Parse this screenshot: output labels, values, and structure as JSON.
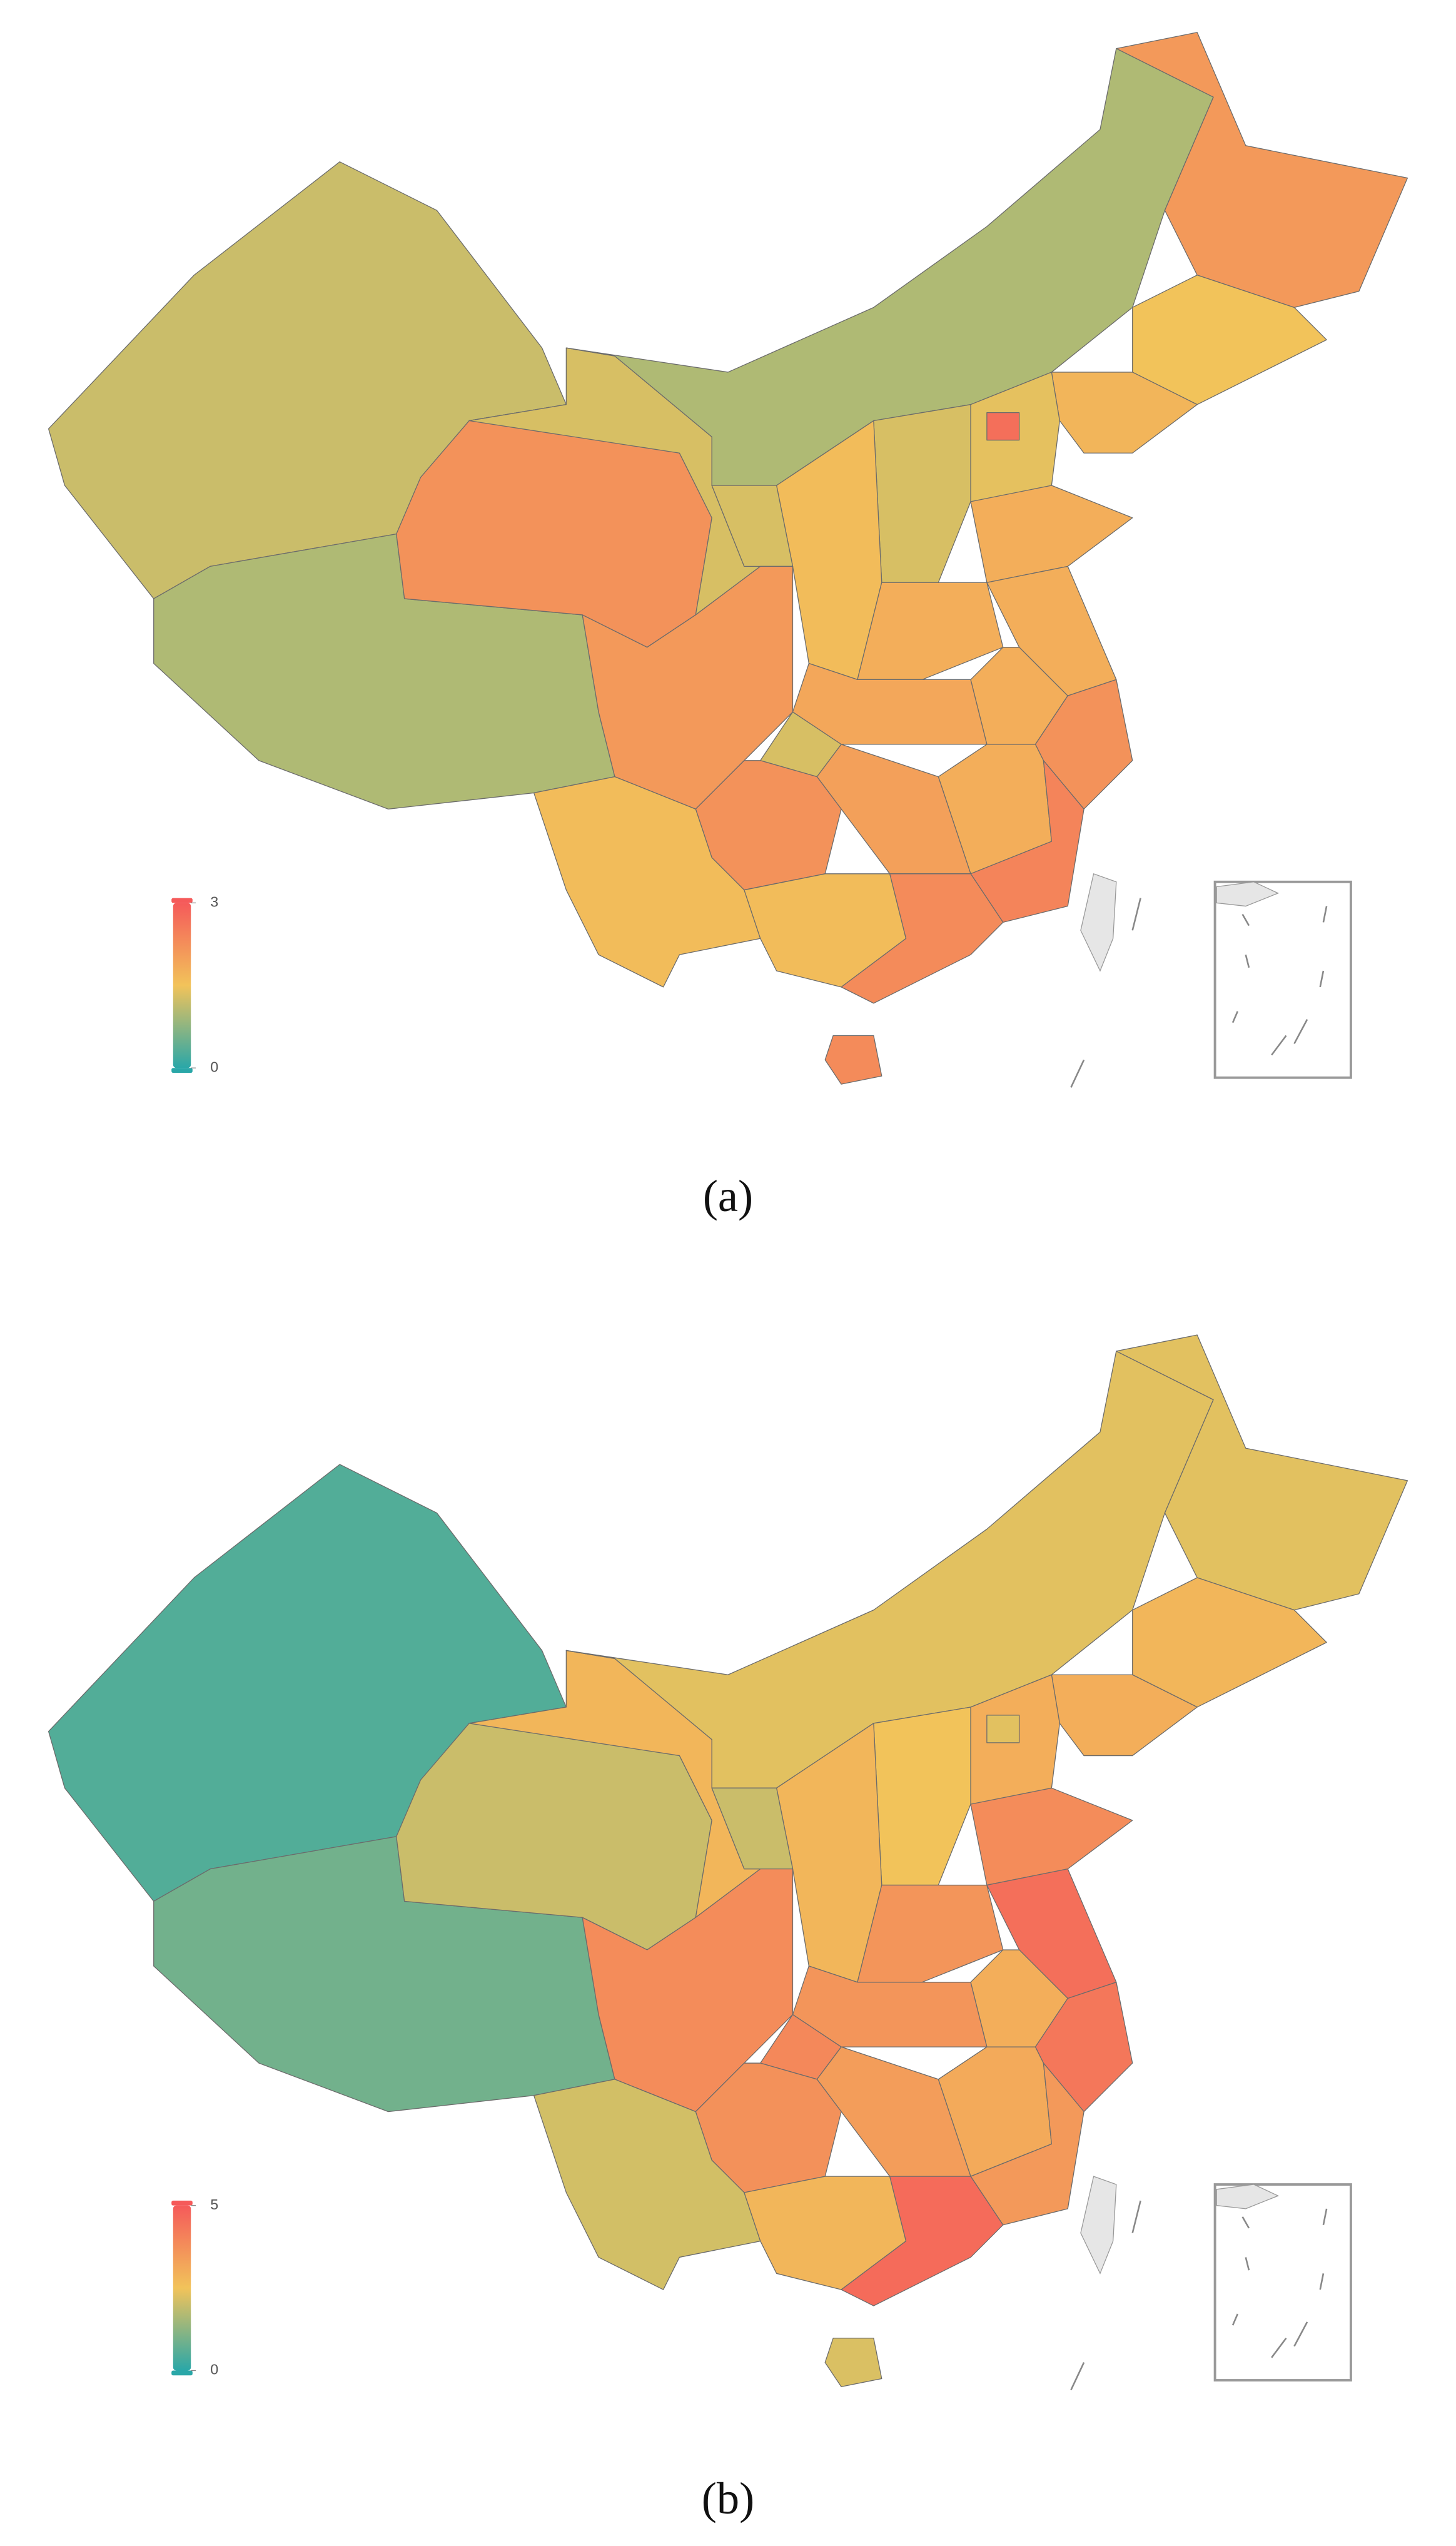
{
  "maps": [
    {
      "caption": "(a)",
      "legend": {
        "ticks": [
          0,
          3
        ]
      },
      "values": [
        1.2,
        1.0,
        2.2,
        1.3,
        1.0,
        2.1,
        1.5,
        1.7,
        1.4,
        2.7,
        1.3,
        1.6,
        1.3,
        1.8,
        1.8,
        1.8,
        1.8,
        1.9,
        2.1,
        1.3,
        2.2,
        1.8,
        2.0,
        2.4,
        2.2,
        1.6,
        1.6,
        2.3,
        2.3
      ]
    },
    {
      "caption": "(b)",
      "legend": {
        "ticks": [
          0,
          5
        ]
      },
      "values": [
        0.5,
        0.9,
        2.0,
        2.8,
        2.3,
        2.3,
        2.8,
        3.0,
        3.0,
        2.3,
        2.5,
        2.8,
        2.0,
        3.8,
        3.6,
        4.5,
        3.0,
        3.6,
        3.8,
        3.9,
        4.3,
        3.1,
        3.4,
        3.5,
        3.7,
        2.1,
        2.8,
        4.6,
        2.2
      ]
    }
  ]
}
